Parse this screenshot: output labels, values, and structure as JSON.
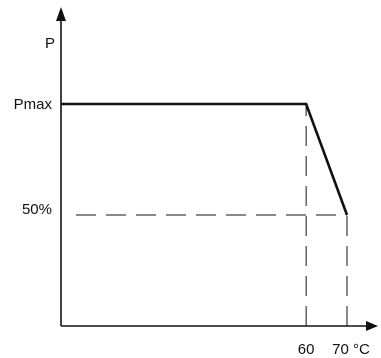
{
  "chart_data": {
    "type": "line",
    "title": "",
    "ylabel": "P",
    "xlabel": "",
    "x_tick_labels": [
      "60",
      "70 °C"
    ],
    "x_ticks": [
      60,
      70
    ],
    "y_tick_labels": [
      "Pmax",
      "50%"
    ],
    "y_ticks": [
      100,
      50
    ],
    "xlim": [
      0,
      70
    ],
    "ylim": [
      0,
      100
    ],
    "series": [
      {
        "x": [
          0,
          60,
          70
        ],
        "y": [
          100,
          100,
          50
        ]
      }
    ],
    "reference_lines": [
      {
        "x": [
          60,
          60
        ],
        "y": [
          0,
          100
        ]
      },
      {
        "x": [
          70,
          70
        ],
        "y": [
          0,
          50
        ]
      },
      {
        "x": [
          0,
          70
        ],
        "y": [
          50,
          50
        ]
      }
    ],
    "grid": false,
    "legend": "none",
    "line_color": "#111111"
  }
}
